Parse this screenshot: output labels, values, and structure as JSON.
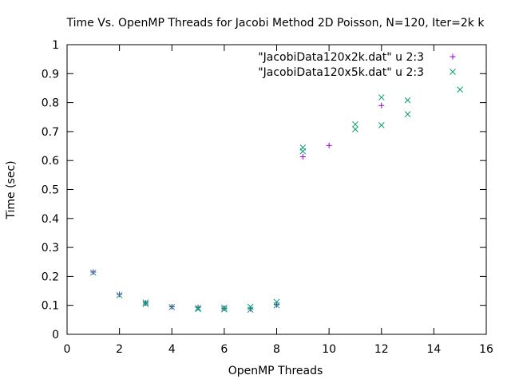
{
  "chart_data": {
    "type": "scatter",
    "title": "Time Vs. OpenMP Threads for Jacobi Method 2D Poisson, N=120, Iter=2k   k",
    "xlabel": "OpenMP Threads",
    "ylabel": "Time (sec)",
    "xlim": [
      0,
      16
    ],
    "ylim": [
      0,
      1
    ],
    "xticks": [
      "0",
      "2",
      "4",
      "6",
      "8",
      "10",
      "12",
      "14",
      "16"
    ],
    "yticks": [
      "0",
      "0.1",
      "0.2",
      "0.3",
      "0.4",
      "0.5",
      "0.6",
      "0.7",
      "0.8",
      "0.9",
      "1"
    ],
    "legend_position": "top-right",
    "grid": false,
    "series": [
      {
        "name": "\"JacobiData120x2k.dat\" u 2:3",
        "marker": "plus",
        "color": "#9400d3",
        "points": [
          [
            1,
            0.215
          ],
          [
            2,
            0.138
          ],
          [
            3,
            0.108
          ],
          [
            4,
            0.095
          ],
          [
            5,
            0.093
          ],
          [
            6,
            0.09
          ],
          [
            7,
            0.088
          ],
          [
            8,
            0.102
          ],
          [
            9,
            0.613
          ],
          [
            10,
            0.652
          ],
          [
            12,
            0.79
          ]
        ]
      },
      {
        "name": "\"JacobiData120x5k.dat\" u 2:3",
        "marker": "cross",
        "color": "#009e73",
        "points": [
          [
            1,
            0.213
          ],
          [
            2,
            0.135
          ],
          [
            3,
            0.11
          ],
          [
            3,
            0.105
          ],
          [
            4,
            0.094
          ],
          [
            5,
            0.091
          ],
          [
            5,
            0.087
          ],
          [
            6,
            0.092
          ],
          [
            6,
            0.086
          ],
          [
            7,
            0.095
          ],
          [
            7,
            0.085
          ],
          [
            8,
            0.112
          ],
          [
            8,
            0.1
          ],
          [
            9,
            0.645
          ],
          [
            9,
            0.632
          ],
          [
            11,
            0.725
          ],
          [
            11,
            0.708
          ],
          [
            12,
            0.818
          ],
          [
            12,
            0.722
          ],
          [
            13,
            0.808
          ],
          [
            13,
            0.76
          ],
          [
            15,
            0.845
          ]
        ]
      }
    ]
  }
}
